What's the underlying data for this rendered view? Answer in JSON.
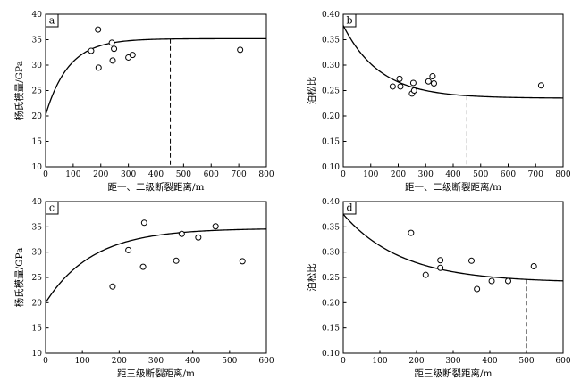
{
  "chart_data": [
    {
      "panel": "a",
      "type": "scatter",
      "xlabel": "距一、二级断裂距离/m",
      "ylabel": "杨氏模量/GPa",
      "xlim": [
        0,
        800
      ],
      "ylim": [
        10,
        40
      ],
      "xticks": [
        0,
        100,
        200,
        300,
        400,
        500,
        600,
        700,
        800
      ],
      "yticks": [
        10,
        15,
        20,
        25,
        30,
        35,
        40
      ],
      "points": [
        {
          "x": 165,
          "y": 32.8
        },
        {
          "x": 190,
          "y": 37.0
        },
        {
          "x": 192,
          "y": 29.5
        },
        {
          "x": 240,
          "y": 34.4
        },
        {
          "x": 243,
          "y": 30.9
        },
        {
          "x": 248,
          "y": 33.2
        },
        {
          "x": 300,
          "y": 31.5
        },
        {
          "x": 315,
          "y": 32.0
        },
        {
          "x": 705,
          "y": 33.0
        }
      ],
      "curve": {
        "type": "exp-approach",
        "y0": 20.2,
        "yinf": 35.2,
        "k": 0.012
      },
      "dashed_x": 452
    },
    {
      "panel": "b",
      "type": "scatter",
      "xlabel": "距一、二级断裂距离/m",
      "ylabel": "泊松比",
      "xlim": [
        0,
        800
      ],
      "ylim": [
        0.1,
        0.4
      ],
      "xticks": [
        0,
        100,
        200,
        300,
        400,
        500,
        600,
        700,
        800
      ],
      "yticks": [
        0.1,
        0.15,
        0.2,
        0.25,
        0.3,
        0.35,
        0.4
      ],
      "points": [
        {
          "x": 180,
          "y": 0.258
        },
        {
          "x": 205,
          "y": 0.273
        },
        {
          "x": 208,
          "y": 0.258
        },
        {
          "x": 250,
          "y": 0.244
        },
        {
          "x": 255,
          "y": 0.265
        },
        {
          "x": 258,
          "y": 0.25
        },
        {
          "x": 310,
          "y": 0.268
        },
        {
          "x": 325,
          "y": 0.278
        },
        {
          "x": 330,
          "y": 0.264
        },
        {
          "x": 720,
          "y": 0.26
        }
      ],
      "curve": {
        "type": "exp-approach",
        "y0": 0.378,
        "yinf": 0.235,
        "k": 0.0075
      },
      "dashed_x": 450
    },
    {
      "panel": "c",
      "type": "scatter",
      "xlabel": "距三级断裂距离/m",
      "ylabel": "杨氏模量/GPa",
      "xlim": [
        0,
        600
      ],
      "ylim": [
        10,
        40
      ],
      "xticks": [
        0,
        100,
        200,
        300,
        400,
        500,
        600
      ],
      "yticks": [
        10,
        15,
        20,
        25,
        30,
        35,
        40
      ],
      "points": [
        {
          "x": 182,
          "y": 23.2
        },
        {
          "x": 225,
          "y": 30.4
        },
        {
          "x": 265,
          "y": 27.1
        },
        {
          "x": 268,
          "y": 35.8
        },
        {
          "x": 355,
          "y": 28.3
        },
        {
          "x": 370,
          "y": 33.6
        },
        {
          "x": 415,
          "y": 32.9
        },
        {
          "x": 462,
          "y": 35.1
        },
        {
          "x": 535,
          "y": 28.2
        }
      ],
      "curve": {
        "type": "exp-approach",
        "y0": 20.0,
        "yinf": 34.7,
        "k": 0.0078
      },
      "dashed_x": 300
    },
    {
      "panel": "d",
      "type": "scatter",
      "xlabel": "距三级断裂距离/m",
      "ylabel": "泊松比",
      "xlim": [
        0,
        600
      ],
      "ylim": [
        0.1,
        0.4
      ],
      "xticks": [
        0,
        100,
        200,
        300,
        400,
        500,
        600
      ],
      "yticks": [
        0.1,
        0.15,
        0.2,
        0.25,
        0.3,
        0.35,
        0.4
      ],
      "points": [
        {
          "x": 185,
          "y": 0.338
        },
        {
          "x": 225,
          "y": 0.255
        },
        {
          "x": 265,
          "y": 0.284
        },
        {
          "x": 265,
          "y": 0.269
        },
        {
          "x": 350,
          "y": 0.283
        },
        {
          "x": 365,
          "y": 0.227
        },
        {
          "x": 405,
          "y": 0.243
        },
        {
          "x": 450,
          "y": 0.243
        },
        {
          "x": 520,
          "y": 0.272
        }
      ],
      "curve": {
        "type": "exp-approach",
        "y0": 0.375,
        "yinf": 0.24,
        "k": 0.0062
      },
      "dashed_x": 500
    }
  ]
}
